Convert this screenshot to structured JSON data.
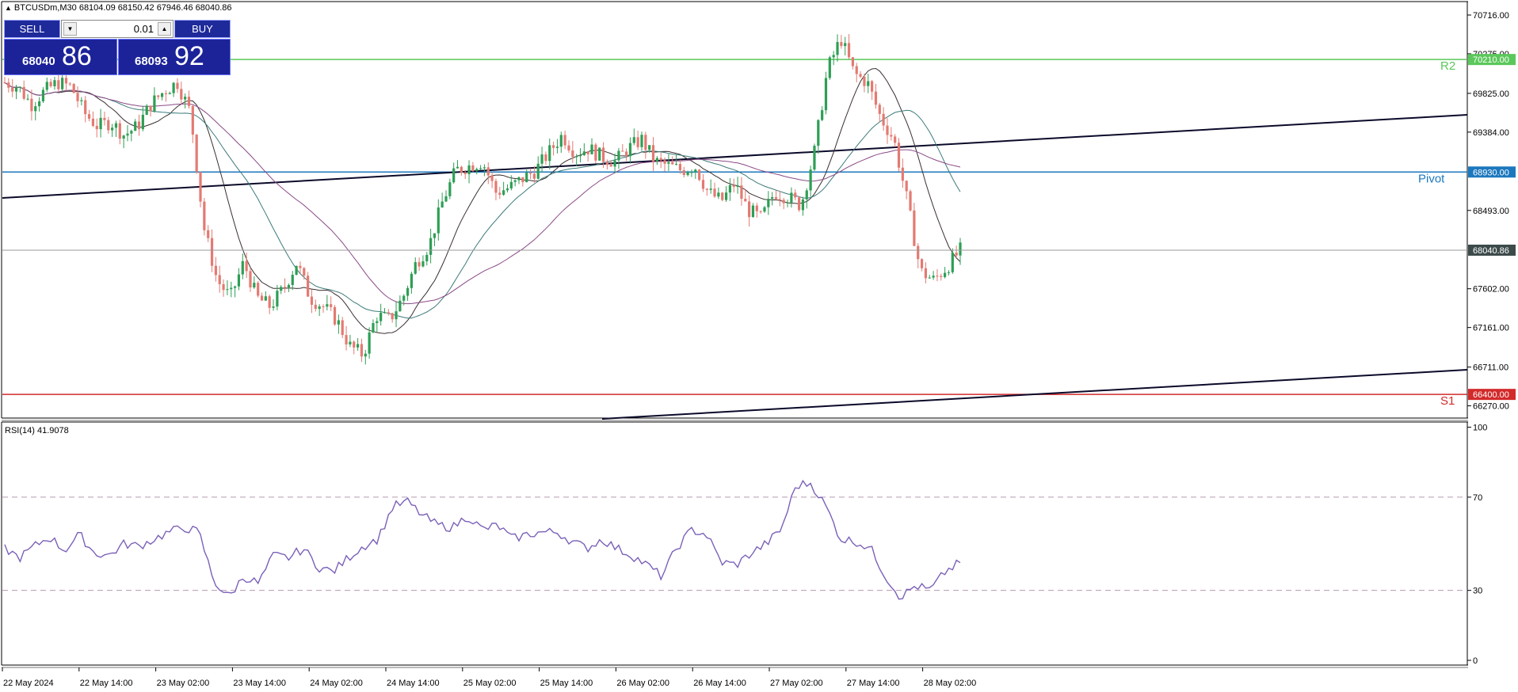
{
  "symbol": {
    "header": "BTCUSDm,M30  68104.09 68150.42 67946.46 68040.86"
  },
  "trade_panel": {
    "sell_label": "SELL",
    "buy_label": "BUY",
    "lot_value": "0.01",
    "sell_price_prefix": "68040",
    "sell_price_big": "86",
    "buy_price_prefix": "68093",
    "buy_price_big": "92"
  },
  "colors": {
    "bull": "#2e9e55",
    "bear": "#e37a72",
    "r2": "#5ac85a",
    "pivot": "#1c78be",
    "s1": "#d32a2a",
    "current": "#3d4a4a",
    "rsi": "#7b61b8",
    "ma_dark": "#3a2f2f",
    "ma_purple": "#8a4a86",
    "ma_teal": "#3d7a7a"
  },
  "price_axis": {
    "ticks": [
      70716.0,
      70275.0,
      69825.0,
      69384.0,
      68493.0,
      67602.0,
      67161.0,
      66711.0,
      66270.0
    ],
    "tick_labels": [
      "70716.00",
      "70275.00",
      "69825.00",
      "69384.00",
      "68493.00",
      "67602.00",
      "67161.00",
      "66711.00",
      "66270.00"
    ]
  },
  "levels": [
    {
      "name": "R2",
      "price": 70210.0,
      "label": "70210.00",
      "color_key": "r2"
    },
    {
      "name": "Pivot",
      "price": 68930.0,
      "label": "68930.00",
      "color_key": "pivot"
    },
    {
      "name": "S1",
      "price": 66400.0,
      "label": "66400.00",
      "color_key": "s1"
    }
  ],
  "current_price": {
    "price": 68040.86,
    "label": "68040.86"
  },
  "rsi": {
    "label": "RSI(14) 41.9078",
    "period": 14,
    "value": 41.9078,
    "levels": [
      70,
      30
    ],
    "scale_labels": [
      "100",
      "70",
      "30",
      "0"
    ],
    "scale_values": [
      100,
      70,
      30,
      0
    ]
  },
  "time_axis": {
    "labels": [
      "22 May 2024",
      "22 May 14:00",
      "23 May 02:00",
      "23 May 14:00",
      "24 May 02:00",
      "24 May 14:00",
      "25 May 02:00",
      "25 May 14:00",
      "26 May 02:00",
      "26 May 14:00",
      "27 May 02:00",
      "27 May 14:00",
      "28 May 02:00"
    ]
  },
  "chart_data": {
    "type": "candlestick",
    "title": "BTCUSDm,M30",
    "series": [
      {
        "name": "price_path",
        "values": [
          69950,
          69900,
          69700,
          69850,
          69950,
          69900,
          69600,
          69450,
          69500,
          69350,
          69450,
          69700,
          69850,
          69950,
          69600,
          68300,
          67700,
          67500,
          67900,
          67500,
          67400,
          67600,
          67900,
          67500,
          67400,
          67250,
          66950,
          66850,
          67300,
          67250,
          67500,
          67900,
          68100,
          68600,
          68950,
          69000,
          69050,
          68700,
          68750,
          68850,
          68950,
          69150,
          69350,
          69150,
          69200,
          69100,
          69050,
          69200,
          69300,
          69050,
          69000,
          68950,
          69000,
          68700,
          68600,
          68800,
          68500,
          68400,
          68700,
          68650,
          68550,
          69150,
          70100,
          70450,
          70050,
          69950,
          69550,
          69300,
          68600,
          67800,
          67700,
          67850,
          68040
        ]
      },
      {
        "name": "RSI(14)",
        "values": [
          48,
          44,
          49,
          53,
          47,
          54,
          46,
          45,
          50,
          49,
          52,
          55,
          57,
          55,
          34,
          27,
          36,
          33,
          45,
          44,
          48,
          40,
          38,
          44,
          49,
          52,
          66,
          68,
          62,
          58,
          57,
          62,
          56,
          58,
          52,
          54,
          55,
          55,
          51,
          48,
          52,
          48,
          45,
          41,
          36,
          48,
          56,
          54,
          42,
          41,
          46,
          50,
          56,
          75,
          76,
          66,
          52,
          51,
          48,
          36,
          27,
          32,
          30,
          38,
          42
        ]
      }
    ],
    "ylim_price": [
      66140,
      70860
    ],
    "ylim_rsi": [
      0,
      100
    ],
    "grid": false
  }
}
